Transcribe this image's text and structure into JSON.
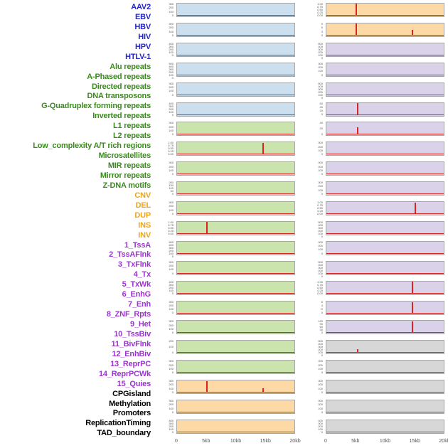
{
  "chart_data": {
    "type": "line",
    "layout_note": "small-multiple mini line panels, 2 columns x 22 rows, shared x axis 0-20kb",
    "x_axis": {
      "ticks": [
        "0",
        "5kb",
        "10kb",
        "15kb",
        "20kb"
      ],
      "range_kb": [
        0,
        20
      ]
    },
    "colors": {
      "line": "#dd2222",
      "label": {
        "virus": "#2424cd",
        "repeat": "#3a8a1e",
        "sv": "#f0a418",
        "chromatin": "#9b35cf",
        "other": "#000000"
      },
      "panel": {
        "blue": "#cbdfee",
        "green": "#cbe4ae",
        "orange": "#fdd9a6",
        "purple": "#dad2e9",
        "grey": "#d7d7d7"
      }
    },
    "row_labels": [
      {
        "text": "AAV2",
        "group": "virus"
      },
      {
        "text": "EBV",
        "group": "virus"
      },
      {
        "text": "HBV",
        "group": "virus"
      },
      {
        "text": "HIV",
        "group": "virus"
      },
      {
        "text": "HPV",
        "group": "virus"
      },
      {
        "text": "HTLV-1",
        "group": "virus"
      },
      {
        "text": "Alu repeats",
        "group": "repeat"
      },
      {
        "text": "A-Phased repeats",
        "group": "repeat"
      },
      {
        "text": "Directed repeats",
        "group": "repeat"
      },
      {
        "text": "DNA transposons",
        "group": "repeat"
      },
      {
        "text": "G-Quadruplex forming repeats",
        "group": "repeat"
      },
      {
        "text": "Inverted repeats",
        "group": "repeat"
      },
      {
        "text": "L1 repeats",
        "group": "repeat"
      },
      {
        "text": "L2 repeats",
        "group": "repeat"
      },
      {
        "text": "Low_complexity A/T rich regions",
        "group": "repeat"
      },
      {
        "text": "Microsatellites",
        "group": "repeat"
      },
      {
        "text": "MIR repeats",
        "group": "repeat"
      },
      {
        "text": "Mirror repeats",
        "group": "repeat"
      },
      {
        "text": "Z-DNA motifs",
        "group": "repeat"
      },
      {
        "text": "CNV",
        "group": "sv"
      },
      {
        "text": "DEL",
        "group": "sv"
      },
      {
        "text": "DUP",
        "group": "sv"
      },
      {
        "text": "INS",
        "group": "sv"
      },
      {
        "text": "INV",
        "group": "sv"
      },
      {
        "text": "1_TssA",
        "group": "chromatin"
      },
      {
        "text": "2_TssAFlnk",
        "group": "chromatin"
      },
      {
        "text": "3_TxFlnk",
        "group": "chromatin"
      },
      {
        "text": "4_Tx",
        "group": "chromatin"
      },
      {
        "text": "5_TxWk",
        "group": "chromatin"
      },
      {
        "text": "6_EnhG",
        "group": "chromatin"
      },
      {
        "text": "7_Enh",
        "group": "chromatin"
      },
      {
        "text": "8_ZNF_Rpts",
        "group": "chromatin"
      },
      {
        "text": "9_Het",
        "group": "chromatin"
      },
      {
        "text": "10_TssBiv",
        "group": "chromatin"
      },
      {
        "text": "11_BivFlnk",
        "group": "chromatin"
      },
      {
        "text": "12_EnhBiv",
        "group": "chromatin"
      },
      {
        "text": "13_ReprPC",
        "group": "chromatin"
      },
      {
        "text": "14_ReprPCWk",
        "group": "chromatin"
      },
      {
        "text": "15_Quies",
        "group": "chromatin"
      },
      {
        "text": "CPGisland",
        "group": "other"
      },
      {
        "text": "Methylation",
        "group": "other"
      },
      {
        "text": "Promoters",
        "group": "other"
      },
      {
        "text": "ReplicationTiming",
        "group": "other"
      },
      {
        "text": "TAD_boundary",
        "group": "other"
      }
    ],
    "left_panels": [
      {
        "bg": "blue",
        "yticks": [
          "300",
          "200",
          "100",
          "0"
        ],
        "spikes": []
      },
      {
        "bg": "blue",
        "yticks": [
          "300",
          "200",
          "100",
          "0"
        ],
        "spikes": []
      },
      {
        "bg": "blue",
        "yticks": [
          "400",
          "300",
          "200",
          "100",
          "0"
        ],
        "spikes": []
      },
      {
        "bg": "blue",
        "yticks": [
          "500",
          "400",
          "300",
          "200",
          "100",
          "0"
        ],
        "spikes": []
      },
      {
        "bg": "blue",
        "yticks": [
          "300",
          "200",
          "100",
          "0"
        ],
        "spikes": []
      },
      {
        "bg": "blue",
        "yticks": [
          "400",
          "300",
          "200",
          "100",
          "0"
        ],
        "spikes": []
      },
      {
        "bg": "green",
        "yticks": [
          "300",
          "200",
          "100",
          "0"
        ],
        "spikes": []
      },
      {
        "bg": "green",
        "yticks": [
          "1.00",
          "0.75",
          "0.50",
          "0.25",
          "0.00"
        ],
        "spikes": [
          {
            "x": 0.73,
            "h": 0.92
          }
        ]
      },
      {
        "bg": "green",
        "yticks": [
          "300",
          "200",
          "100",
          "0"
        ],
        "spikes": []
      },
      {
        "bg": "green",
        "yticks": [
          "200",
          "150",
          "100",
          "50",
          "0"
        ],
        "spikes": []
      },
      {
        "bg": "green",
        "yticks": [
          "300",
          "200",
          "100",
          "0"
        ],
        "spikes": []
      },
      {
        "bg": "green",
        "yticks": [
          "1.00",
          "0.75",
          "0.50",
          "0.25",
          "0.00"
        ],
        "spikes": [
          {
            "x": 0.25,
            "h": 0.92
          }
        ]
      },
      {
        "bg": "green",
        "yticks": [
          "500",
          "400",
          "300",
          "200",
          "100",
          "0"
        ],
        "spikes": []
      },
      {
        "bg": "green",
        "yticks": [
          "300",
          "200",
          "100",
          "0"
        ],
        "spikes": []
      },
      {
        "bg": "green",
        "yticks": [
          "400",
          "300",
          "200",
          "100",
          "0"
        ],
        "spikes": []
      },
      {
        "bg": "green",
        "yticks": [
          "300",
          "200",
          "100",
          "0"
        ],
        "spikes": []
      },
      {
        "bg": "green",
        "yticks": [
          "300",
          "200",
          "100",
          "0"
        ],
        "spikes": []
      },
      {
        "bg": "green",
        "yticks": [
          "200",
          "100",
          "0"
        ],
        "spikes": []
      },
      {
        "bg": "green",
        "yticks": [
          "300",
          "200",
          "100",
          "0"
        ],
        "spikes": []
      },
      {
        "bg": "orange",
        "yticks": [
          "300",
          "200",
          "100",
          "0"
        ],
        "spikes": [
          {
            "x": 0.25,
            "h": 0.88
          },
          {
            "x": 0.73,
            "h": 0.35
          }
        ]
      },
      {
        "bg": "orange",
        "yticks": [
          "300",
          "200",
          "100",
          "0"
        ],
        "spikes": []
      },
      {
        "bg": "orange",
        "yticks": [
          "400",
          "300",
          "200",
          "100",
          "0"
        ],
        "spikes": []
      }
    ],
    "right_panels": [
      {
        "bg": "orange",
        "yticks": [
          "1.00",
          "0.75",
          "0.50",
          "0.25",
          "0.00"
        ],
        "spikes": [
          {
            "x": 0.25,
            "h": 0.92
          }
        ]
      },
      {
        "bg": "orange",
        "yticks": [
          "9",
          "6",
          "3",
          "0"
        ],
        "spikes": [
          {
            "x": 0.25,
            "h": 0.92
          },
          {
            "x": 0.73,
            "h": 0.45
          }
        ]
      },
      {
        "bg": "purple",
        "yticks": [
          "500",
          "400",
          "300",
          "200",
          "100",
          "0"
        ],
        "spikes": []
      },
      {
        "bg": "purple",
        "yticks": [
          "300",
          "200",
          "100",
          "0"
        ],
        "spikes": []
      },
      {
        "bg": "purple",
        "yticks": [
          "500",
          "400",
          "300",
          "200",
          "100",
          "0"
        ],
        "spikes": []
      },
      {
        "bg": "purple",
        "yticks": [
          "60",
          "40",
          "20",
          "0"
        ],
        "spikes": [
          {
            "x": 0.26,
            "h": 0.9
          }
        ]
      },
      {
        "bg": "purple",
        "yticks": [
          "40",
          "20",
          "0"
        ],
        "spikes": [
          {
            "x": 0.26,
            "h": 0.6
          }
        ]
      },
      {
        "bg": "purple",
        "yticks": [
          "300",
          "200",
          "100",
          "0"
        ],
        "spikes": []
      },
      {
        "bg": "purple",
        "yticks": [
          "300",
          "200",
          "100",
          "0"
        ],
        "spikes": []
      },
      {
        "bg": "purple",
        "yticks": [
          "300",
          "200",
          "100",
          "0"
        ],
        "spikes": []
      },
      {
        "bg": "purple",
        "yticks": [
          "1.00",
          "0.75",
          "0.50",
          "0.25",
          "0.00"
        ],
        "spikes": [
          {
            "x": 0.75,
            "h": 0.9
          }
        ]
      },
      {
        "bg": "purple",
        "yticks": [
          "500",
          "400",
          "300",
          "200",
          "100",
          "0"
        ],
        "spikes": []
      },
      {
        "bg": "purple",
        "yticks": [
          "300",
          "200",
          "100",
          "0"
        ],
        "spikes": []
      },
      {
        "bg": "purple",
        "yticks": [
          "500",
          "400",
          "300",
          "200",
          "100",
          "0"
        ],
        "spikes": []
      },
      {
        "bg": "purple",
        "yticks": [
          "1.00",
          "0.75",
          "0.50",
          "0.25",
          "0.00"
        ],
        "spikes": [
          {
            "x": 0.73,
            "h": 0.9
          }
        ]
      },
      {
        "bg": "purple",
        "yticks": [
          "6",
          "4",
          "2",
          "0"
        ],
        "spikes": [
          {
            "x": 0.73,
            "h": 0.85
          }
        ]
      },
      {
        "bg": "purple",
        "yticks": [
          "120",
          "90",
          "60",
          "30",
          "0"
        ],
        "spikes": [
          {
            "x": 0.73,
            "h": 0.9
          }
        ]
      },
      {
        "bg": "grey",
        "yticks": [
          "500",
          "400",
          "300",
          "200",
          "100",
          "0"
        ],
        "spikes": [
          {
            "x": 0.26,
            "h": 0.3
          }
        ]
      },
      {
        "bg": "grey",
        "yticks": [
          "300",
          "200",
          "100",
          "0"
        ],
        "spikes": []
      },
      {
        "bg": "grey",
        "yticks": [
          "300",
          "200",
          "100",
          "0"
        ],
        "spikes": []
      },
      {
        "bg": "grey",
        "yticks": [
          "300",
          "200",
          "100",
          "0"
        ],
        "spikes": []
      },
      {
        "bg": "grey",
        "yticks": [
          "400",
          "300",
          "200",
          "100",
          "0"
        ],
        "spikes": []
      }
    ]
  }
}
